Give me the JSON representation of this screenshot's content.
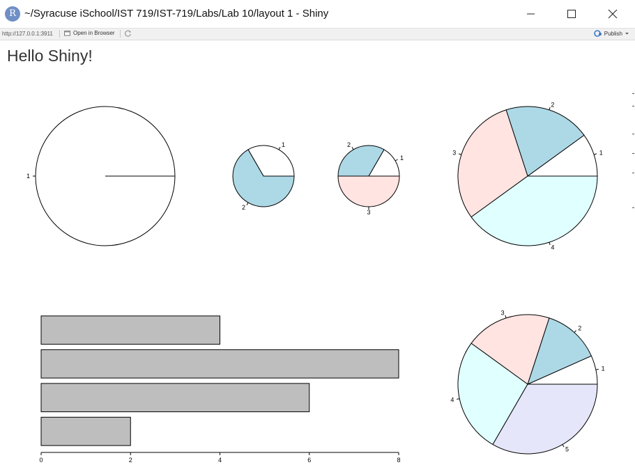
{
  "window": {
    "title": "~/Syracuse iSchool/IST 719/IST-719/Labs/Lab 10/layout 1 - Shiny",
    "app_icon_letter": "R"
  },
  "toolbar": {
    "url": "http://127.0.0.1:3911",
    "open_in_browser": "Open in Browser",
    "publish": "Publish"
  },
  "app": {
    "heading": "Hello Shiny!"
  },
  "colors": {
    "slice_1": "#ffffff",
    "slice_2": "#add8e6",
    "slice_3": "#ffe4e1",
    "slice_4": "#e0ffff",
    "slice_5": "#e6e6fa",
    "bar_fill": "#bebebe",
    "stroke": "#000000"
  },
  "chart_data": [
    {
      "type": "pie",
      "labels": [
        "1"
      ],
      "values": [
        1
      ]
    },
    {
      "type": "pie",
      "labels": [
        "1",
        "2"
      ],
      "values": [
        1,
        2
      ]
    },
    {
      "type": "pie",
      "labels": [
        "1",
        "2",
        "3"
      ],
      "values": [
        1,
        2,
        3
      ]
    },
    {
      "type": "pie",
      "labels": [
        "1",
        "2",
        "3",
        "4"
      ],
      "values": [
        1,
        2,
        3,
        4
      ]
    },
    {
      "type": "bar",
      "orientation": "horizontal",
      "values": [
        2,
        6,
        8,
        4
      ],
      "xlim": [
        0,
        8
      ],
      "xticks": [
        "0",
        "2",
        "4",
        "6",
        "8"
      ]
    },
    {
      "type": "pie",
      "labels": [
        "1",
        "2",
        "3",
        "4",
        "5"
      ],
      "values": [
        1,
        2,
        3,
        4,
        5
      ]
    }
  ]
}
